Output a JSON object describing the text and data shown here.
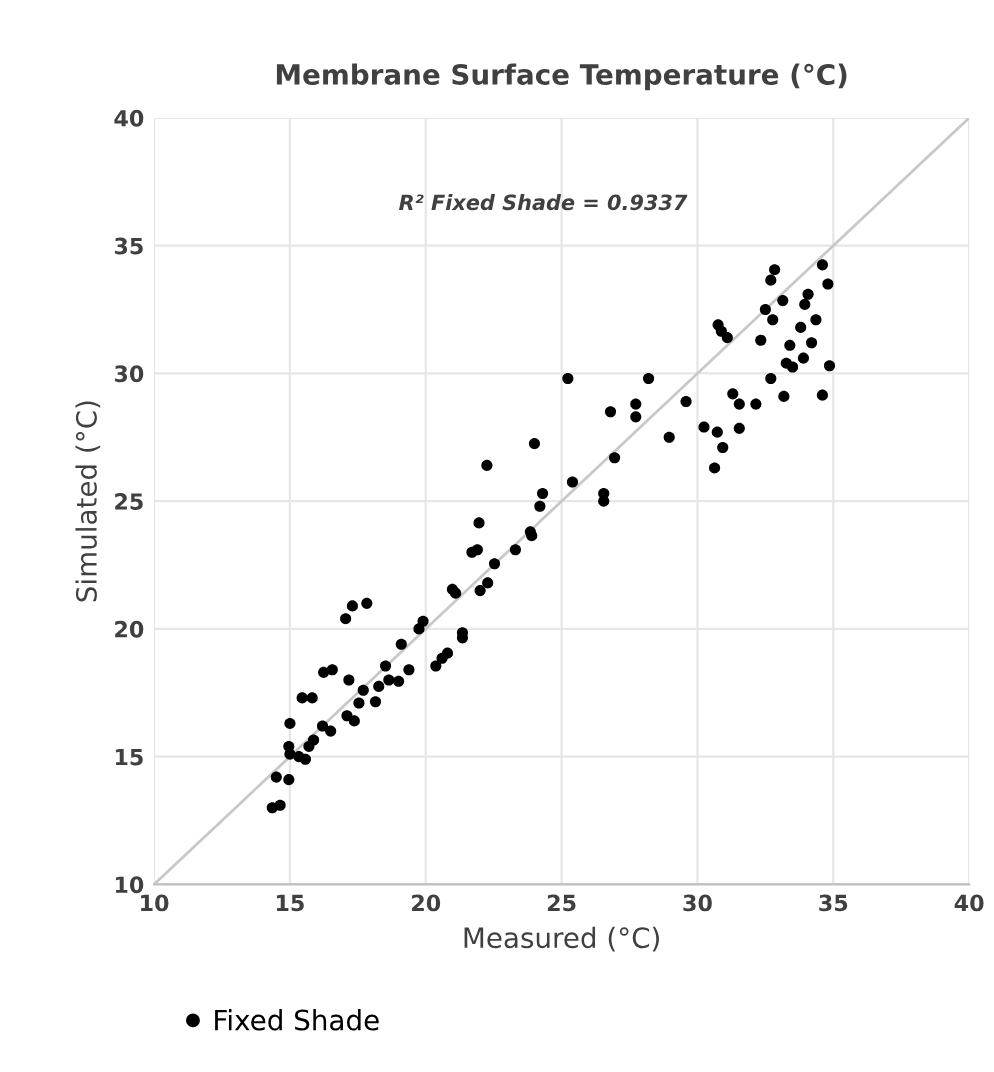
{
  "chart_data": {
    "type": "scatter",
    "title": "Membrane Surface Temperature (°C)",
    "xlabel": "Measured (°C)",
    "ylabel": "Simulated (°C)",
    "annotations": [
      "R² Fixed Shade = 0.9337"
    ],
    "xlim": [
      10,
      40
    ],
    "ylim": [
      10,
      40
    ],
    "xticks": [
      10,
      15,
      20,
      25,
      30,
      35,
      40
    ],
    "yticks": [
      10,
      15,
      20,
      25,
      30,
      35,
      40
    ],
    "grid": true,
    "legend": "bottom left",
    "series": [
      {
        "name": "Fixed Shade",
        "color": "#000000",
        "marker": "circle",
        "x": [
          14.35,
          14.64,
          14.5,
          14.96,
          15.0,
          14.96,
          15.33,
          15.57,
          15.7,
          15.87,
          15.0,
          15.45,
          15.82,
          16.2,
          16.5,
          16.24,
          16.56,
          17.1,
          17.37,
          17.54,
          18.15,
          17.7,
          17.17,
          18.27,
          18.52,
          18.64,
          19.0,
          19.38,
          19.1,
          17.05,
          17.3,
          17.83,
          19.75,
          19.9,
          20.37,
          20.6,
          20.8,
          21.35,
          21.35,
          20.98,
          21.1,
          21.7,
          21.9,
          21.96,
          22.0,
          22.28,
          22.53,
          23.3,
          23.85,
          23.9,
          24.2,
          25.23,
          28.2,
          26.8,
          27.73,
          27.73,
          24.0,
          22.25,
          26.95,
          25.4,
          24.3,
          26.55,
          26.55,
          32.84,
          32.7,
          34.6,
          34.8,
          33.14,
          34.07,
          33.95,
          32.5,
          32.77,
          30.76,
          30.88,
          31.1,
          32.33,
          33.8,
          34.36,
          33.4,
          34.2,
          33.27,
          33.5,
          33.9,
          34.86,
          32.7,
          31.3,
          31.54,
          32.15,
          33.18,
          34.6,
          29.58,
          30.24,
          30.73,
          30.93,
          30.63,
          31.54,
          28.96
        ],
        "values": [
          13.0,
          13.1,
          14.2,
          14.1,
          15.1,
          15.4,
          15.0,
          14.9,
          15.4,
          15.65,
          16.3,
          17.3,
          17.3,
          16.2,
          16.0,
          18.3,
          18.4,
          16.6,
          16.4,
          17.1,
          17.15,
          17.6,
          18.0,
          17.75,
          18.55,
          18.0,
          17.95,
          18.4,
          19.4,
          20.4,
          20.9,
          21.0,
          20.0,
          20.3,
          18.55,
          18.85,
          19.05,
          19.85,
          19.65,
          21.55,
          21.4,
          23.0,
          23.1,
          24.15,
          21.5,
          21.8,
          22.55,
          23.1,
          23.8,
          23.65,
          24.8,
          29.8,
          29.8,
          28.5,
          28.8,
          28.3,
          27.25,
          26.4,
          26.7,
          25.75,
          25.3,
          25.3,
          25.0,
          34.06,
          33.65,
          34.25,
          33.5,
          32.85,
          33.1,
          32.7,
          32.5,
          32.1,
          31.9,
          31.65,
          31.4,
          31.3,
          31.8,
          32.1,
          31.1,
          31.2,
          30.4,
          30.25,
          30.6,
          30.3,
          29.8,
          29.2,
          28.8,
          28.8,
          29.1,
          29.15,
          28.9,
          27.9,
          27.7,
          27.1,
          26.3,
          27.85,
          27.5
        ]
      },
      {
        "type": "line",
        "marker": "none",
        "color": "#c8c8c8",
        "x": [
          10,
          40
        ],
        "values": [
          10,
          40
        ]
      }
    ]
  }
}
